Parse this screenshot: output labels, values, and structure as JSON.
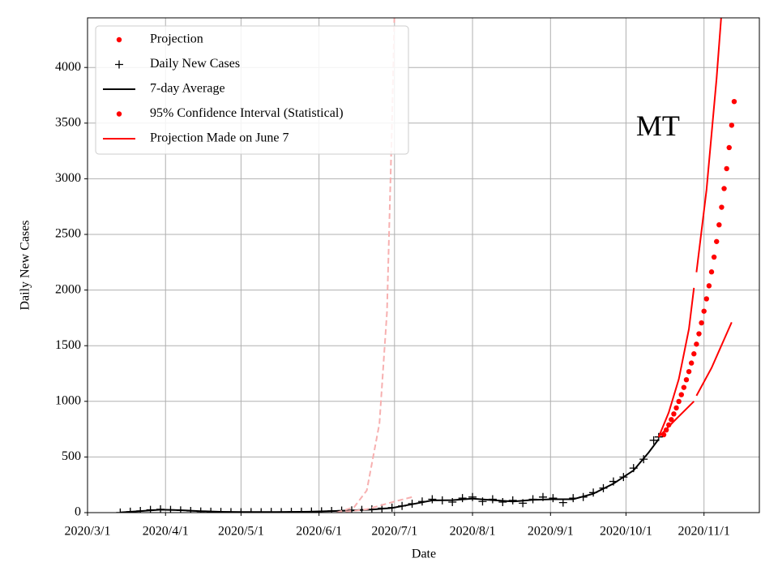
{
  "chart_data": {
    "type": "line",
    "xlabel": "Date",
    "ylabel": "Daily New Cases",
    "annotation": {
      "text": "MT",
      "x": "2020-10-05",
      "y": 3450
    },
    "xlim": [
      "2020-03-01",
      "2020-11-23"
    ],
    "ylim": [
      0,
      4446
    ],
    "xticks": [
      {
        "value": "2020-03-01",
        "label": "2020/3/1"
      },
      {
        "value": "2020-04-01",
        "label": "2020/4/1"
      },
      {
        "value": "2020-05-01",
        "label": "2020/5/1"
      },
      {
        "value": "2020-06-01",
        "label": "2020/6/1"
      },
      {
        "value": "2020-07-01",
        "label": "2020/7/1"
      },
      {
        "value": "2020-08-01",
        "label": "2020/8/1"
      },
      {
        "value": "2020-09-01",
        "label": "2020/9/1"
      },
      {
        "value": "2020-10-01",
        "label": "2020/10/1"
      },
      {
        "value": "2020-11-01",
        "label": "2020/11/1"
      }
    ],
    "yticks": [
      0,
      500,
      1000,
      1500,
      2000,
      2500,
      3000,
      3500,
      4000
    ],
    "grid": true,
    "legend": "upper left",
    "series": [
      {
        "name": "Projection",
        "color": "#ff0000",
        "style": "dot",
        "x": [
          "2020-10-16",
          "2020-10-17",
          "2020-10-18",
          "2020-10-19",
          "2020-10-20",
          "2020-10-21",
          "2020-10-22",
          "2020-10-23",
          "2020-10-24",
          "2020-10-25",
          "2020-10-26",
          "2020-10-27",
          "2020-10-28",
          "2020-10-29",
          "2020-10-30",
          "2020-10-31",
          "2020-11-01",
          "2020-11-02",
          "2020-11-03",
          "2020-11-04",
          "2020-11-05",
          "2020-11-06",
          "2020-11-07",
          "2020-11-08",
          "2020-11-09",
          "2020-11-10",
          "2020-11-11",
          "2020-11-12",
          "2020-11-13"
        ],
        "values": [
          700,
          743,
          788,
          836,
          887,
          941,
          999,
          1060,
          1125,
          1194,
          1267,
          1344,
          1427,
          1514,
          1607,
          1705,
          1810,
          1921,
          2038,
          2163,
          2296,
          2436,
          2586,
          2744,
          2912,
          3091,
          3280,
          3481,
          3694
        ]
      },
      {
        "name": "Daily New Cases",
        "color": "#000000",
        "style": "plus",
        "x": [
          "2020-03-14",
          "2020-03-18",
          "2020-03-22",
          "2020-03-26",
          "2020-03-30",
          "2020-04-03",
          "2020-04-07",
          "2020-04-11",
          "2020-04-15",
          "2020-04-19",
          "2020-04-23",
          "2020-04-27",
          "2020-05-01",
          "2020-05-05",
          "2020-05-09",
          "2020-05-13",
          "2020-05-17",
          "2020-05-21",
          "2020-05-25",
          "2020-05-29",
          "2020-06-02",
          "2020-06-06",
          "2020-06-10",
          "2020-06-14",
          "2020-06-18",
          "2020-06-22",
          "2020-06-26",
          "2020-06-30",
          "2020-07-04",
          "2020-07-08",
          "2020-07-12",
          "2020-07-16",
          "2020-07-20",
          "2020-07-24",
          "2020-07-28",
          "2020-08-01",
          "2020-08-05",
          "2020-08-09",
          "2020-08-13",
          "2020-08-17",
          "2020-08-21",
          "2020-08-25",
          "2020-08-29",
          "2020-09-02",
          "2020-09-06",
          "2020-09-10",
          "2020-09-14",
          "2020-09-18",
          "2020-09-22",
          "2020-09-26",
          "2020-09-30",
          "2020-10-04",
          "2020-10-08",
          "2020-10-12",
          "2020-10-14"
        ],
        "values": [
          1,
          8,
          15,
          25,
          30,
          25,
          20,
          15,
          10,
          8,
          6,
          5,
          4,
          5,
          4,
          6,
          5,
          7,
          8,
          10,
          12,
          15,
          18,
          20,
          25,
          30,
          40,
          45,
          60,
          80,
          100,
          120,
          110,
          95,
          130,
          140,
          100,
          120,
          95,
          110,
          85,
          120,
          140,
          130,
          90,
          130,
          140,
          180,
          220,
          280,
          320,
          400,
          480,
          650,
          680
        ]
      },
      {
        "name": "7-day Average",
        "color": "#000000",
        "style": "line",
        "x": [
          "2020-03-14",
          "2020-03-22",
          "2020-03-30",
          "2020-04-07",
          "2020-04-15",
          "2020-04-23",
          "2020-05-01",
          "2020-05-15",
          "2020-05-29",
          "2020-06-10",
          "2020-06-22",
          "2020-06-30",
          "2020-07-08",
          "2020-07-16",
          "2020-07-24",
          "2020-08-01",
          "2020-08-09",
          "2020-08-17",
          "2020-08-25",
          "2020-09-02",
          "2020-09-10",
          "2020-09-18",
          "2020-09-26",
          "2020-10-04",
          "2020-10-10",
          "2020-10-14"
        ],
        "values": [
          2,
          14,
          26,
          22,
          13,
          7,
          5,
          5,
          9,
          17,
          28,
          42,
          75,
          110,
          112,
          125,
          112,
          100,
          115,
          120,
          120,
          170,
          260,
          380,
          540,
          660
        ]
      },
      {
        "name": "95% Confidence Interval (Statistical)",
        "color": "#ff0000",
        "style": "dot-legend-line",
        "x": [
          "2020-10-14",
          "2020-10-18",
          "2020-10-22",
          "2020-10-26",
          "2020-10-28",
          "2020-10-28",
          "2020-10-29",
          "2020-11-02",
          "2020-11-06",
          "2020-11-08"
        ],
        "values": [
          680,
          900,
          1200,
          1650,
          2020,
          null,
          2160,
          2900,
          3900,
          4500
        ]
      },
      {
        "name": "Projection Made on June 7",
        "color": "#ff0000",
        "style": "line",
        "x": [
          "2020-10-14",
          "2020-10-20",
          "2020-10-28",
          "2020-10-28",
          "2020-10-29",
          "2020-11-04",
          "2020-11-12"
        ],
        "values": [
          680,
          820,
          1000,
          null,
          1050,
          1300,
          1710
        ]
      },
      {
        "color": "#f7b0b0",
        "style": "dash",
        "x": [
          "2020-06-08",
          "2020-06-15",
          "2020-06-20",
          "2020-06-25",
          "2020-06-28",
          "2020-06-30",
          "2020-07-01"
        ],
        "values": [
          0,
          50,
          200,
          800,
          1800,
          3500,
          4500
        ]
      },
      {
        "color": "#f7b0b0",
        "style": "dash",
        "x": [
          "2020-06-08",
          "2020-06-20",
          "2020-07-01",
          "2020-07-08"
        ],
        "values": [
          0,
          30,
          100,
          140
        ]
      }
    ]
  }
}
